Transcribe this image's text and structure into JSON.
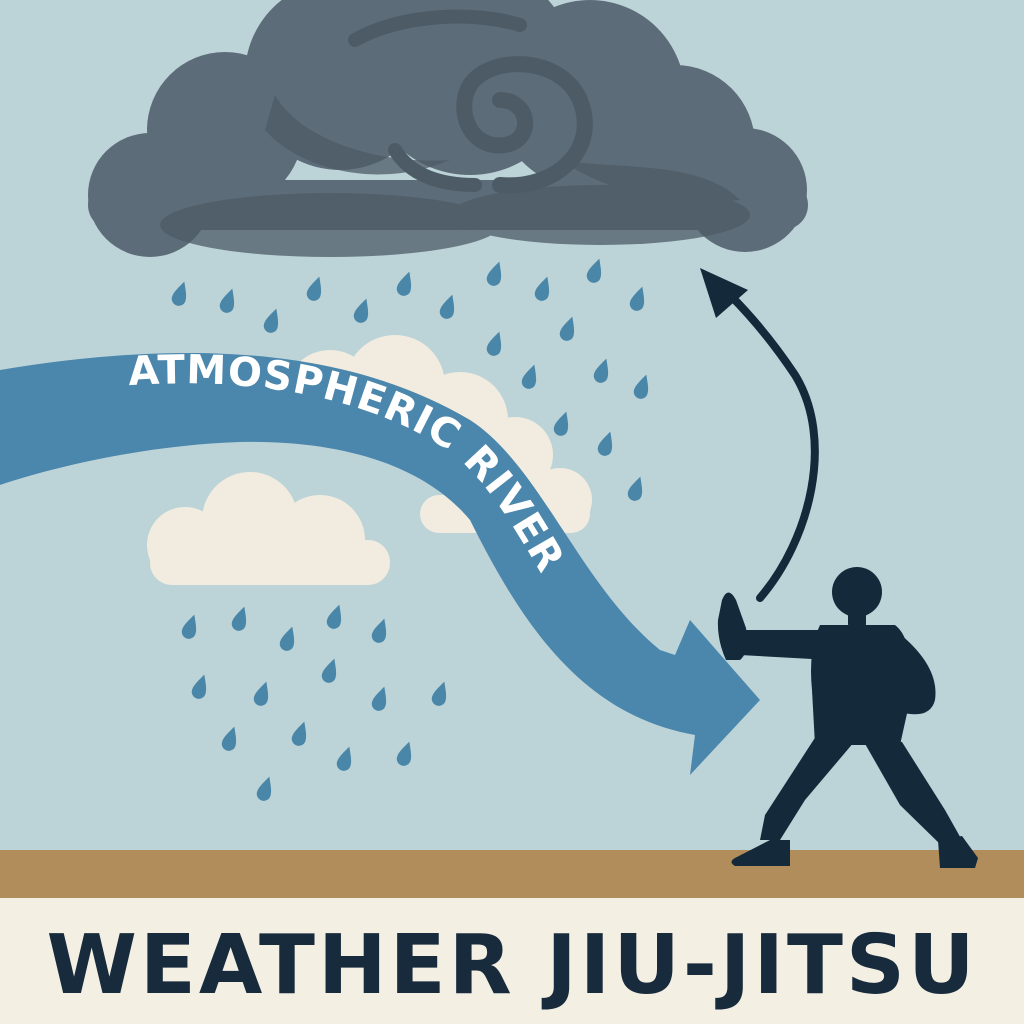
{
  "river_label": "ATMOSPHERIC RIVER",
  "title": "WEATHER JIU-JITSU",
  "icons": [
    "storm-cloud-icon",
    "swirl-icon",
    "rain-drop-icon",
    "cloud-icon",
    "river-arrow-icon",
    "deflection-arrow-icon",
    "martial-artist-icon"
  ],
  "colors": {
    "sky": "#bcd4d8",
    "storm_cloud": "#5d6c79",
    "storm_cloud_dark": "#4d5b67",
    "rain": "#4a86a8",
    "light_cloud": "#f1ecdf",
    "river": "#4b86ac",
    "river_text": "#ffffff",
    "figure": "#14293a",
    "ground": "#b08d5a",
    "title_band": "#f3efe3",
    "title_text": "#182b3c"
  }
}
